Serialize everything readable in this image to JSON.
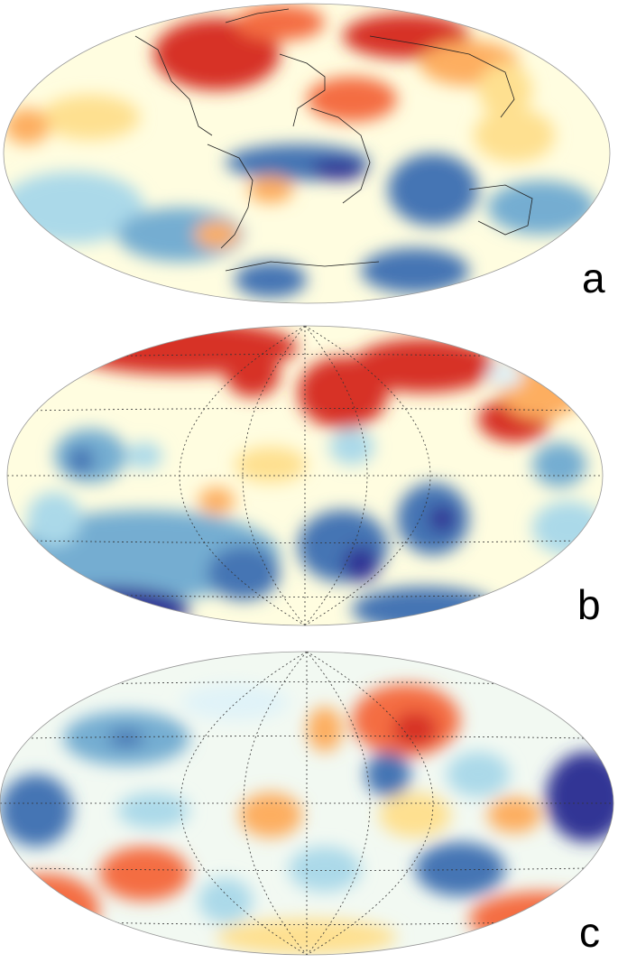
{
  "panels": [
    {
      "label": "a",
      "colors": {
        "hot": "#d7191c",
        "warm": "#f46d43",
        "yellow": "#fee08b",
        "pale": "#ffffbf",
        "cyan": "#abd9e9",
        "blue": "#4575b4",
        "deep": "#313695"
      }
    },
    {
      "label": "b"
    },
    {
      "label": "c"
    }
  ],
  "palette": [
    "#313695",
    "#4575b4",
    "#74add1",
    "#abd9e9",
    "#e0f3f8",
    "#ffffbf",
    "#fee090",
    "#fdae61",
    "#f46d43",
    "#d73027"
  ]
}
